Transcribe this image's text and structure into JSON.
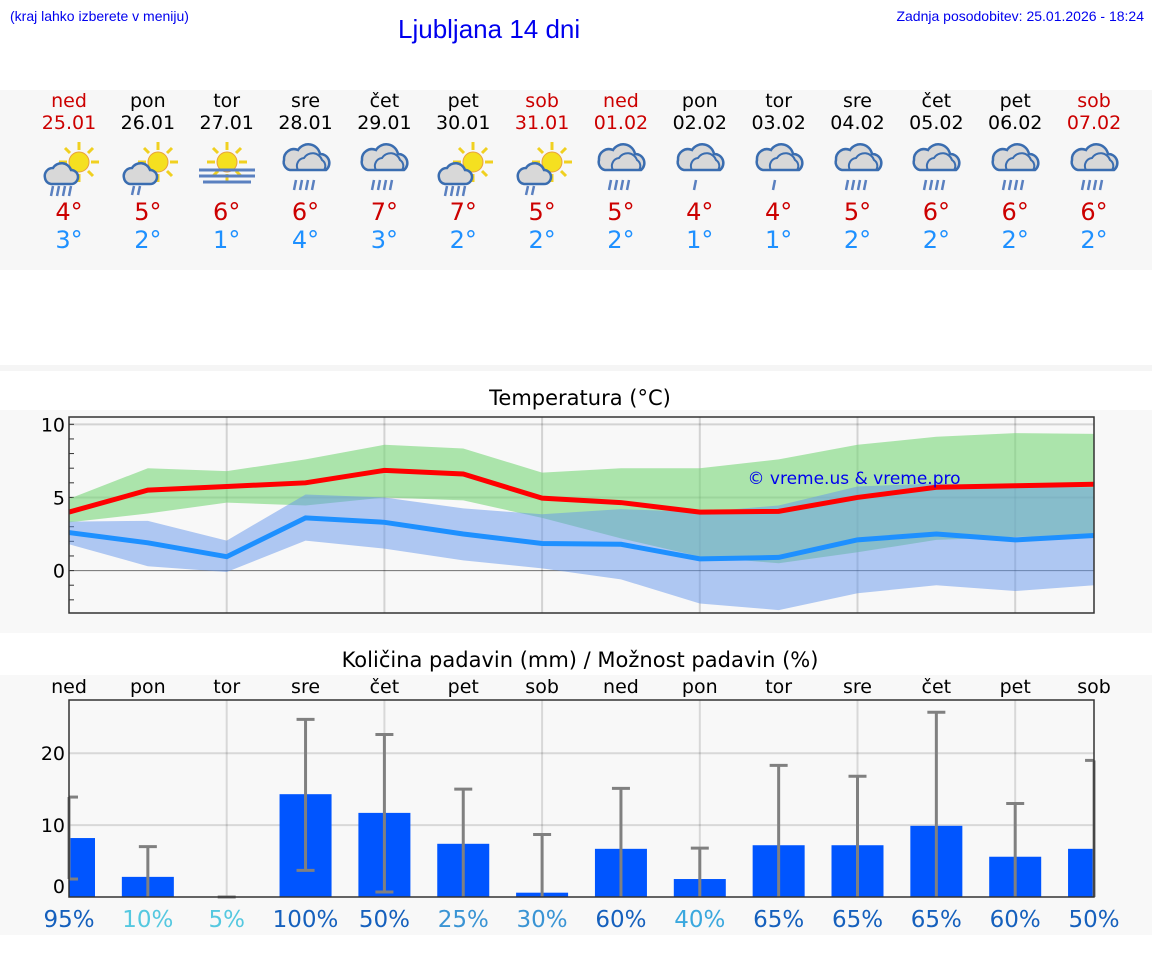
{
  "header": {
    "hint": "(kraj lahko izberete v meniju)",
    "title": "Ljubljana 14 dni",
    "updated": "Zadnja posodobitev: 25.01.2026 - 18:24"
  },
  "days": [
    {
      "name": "ned",
      "date": "25.01",
      "weekend": true,
      "icon": "sun-cloud-rain-icon",
      "max": "4°",
      "min": "3°"
    },
    {
      "name": "pon",
      "date": "26.01",
      "weekend": false,
      "icon": "sun-cloud-light-rain-icon",
      "max": "5°",
      "min": "2°"
    },
    {
      "name": "tor",
      "date": "27.01",
      "weekend": false,
      "icon": "sun-fog-icon",
      "max": "6°",
      "min": "1°"
    },
    {
      "name": "sre",
      "date": "28.01",
      "weekend": false,
      "icon": "cloud-rain-icon",
      "max": "6°",
      "min": "4°"
    },
    {
      "name": "čet",
      "date": "29.01",
      "weekend": false,
      "icon": "cloud-rain-icon",
      "max": "7°",
      "min": "3°"
    },
    {
      "name": "pet",
      "date": "30.01",
      "weekend": false,
      "icon": "sun-cloud-rain-icon",
      "max": "7°",
      "min": "2°"
    },
    {
      "name": "sob",
      "date": "31.01",
      "weekend": true,
      "icon": "sun-cloud-light-rain-icon",
      "max": "5°",
      "min": "2°"
    },
    {
      "name": "ned",
      "date": "01.02",
      "weekend": true,
      "icon": "cloud-rain-icon",
      "max": "5°",
      "min": "2°"
    },
    {
      "name": "pon",
      "date": "02.02",
      "weekend": false,
      "icon": "cloud-light-rain-icon",
      "max": "4°",
      "min": "1°"
    },
    {
      "name": "tor",
      "date": "03.02",
      "weekend": false,
      "icon": "cloud-light-rain-icon",
      "max": "4°",
      "min": "1°"
    },
    {
      "name": "sre",
      "date": "04.02",
      "weekend": false,
      "icon": "cloud-rain-icon",
      "max": "5°",
      "min": "2°"
    },
    {
      "name": "čet",
      "date": "05.02",
      "weekend": false,
      "icon": "cloud-rain-icon",
      "max": "6°",
      "min": "2°"
    },
    {
      "name": "pet",
      "date": "06.02",
      "weekend": false,
      "icon": "cloud-rain-icon",
      "max": "6°",
      "min": "2°"
    },
    {
      "name": "sob",
      "date": "07.02",
      "weekend": true,
      "icon": "cloud-rain-icon",
      "max": "6°",
      "min": "2°"
    }
  ],
  "colors": {
    "weekend": "#cc0000",
    "max": "#ff0000",
    "min": "#1e90ff",
    "max_band": "#aeeaae",
    "min_band": "#adc8f2",
    "overlap": "#7cc8a8",
    "bar": "#0055ff",
    "error": "#808080"
  },
  "chart_data": [
    {
      "type": "line",
      "title": "Temperatura (°C)",
      "watermark": "© vreme.us & vreme.pro",
      "ylim": [
        -2.9,
        10.5
      ],
      "yticks": [
        0,
        5,
        10
      ],
      "grid": true,
      "x": [
        "25.01",
        "26.01",
        "27.01",
        "28.01",
        "29.01",
        "30.01",
        "31.01",
        "01.02",
        "02.02",
        "03.02",
        "04.02",
        "05.02",
        "06.02",
        "07.02"
      ],
      "series": [
        {
          "role": "max",
          "color": "#ff0000",
          "values": [
            4.0,
            5.5,
            5.75,
            6.0,
            6.85,
            6.6,
            4.95,
            4.65,
            4.0,
            4.05,
            5.0,
            5.7,
            5.8,
            5.9
          ],
          "band_low": [
            3.3,
            3.9,
            4.65,
            4.45,
            5.0,
            4.8,
            3.6,
            2.2,
            0.95,
            0.5,
            1.25,
            2.1,
            2.3,
            2.4
          ],
          "band_high": [
            4.9,
            7.0,
            6.8,
            7.6,
            8.6,
            8.35,
            6.7,
            7.0,
            7.0,
            7.6,
            8.6,
            9.15,
            9.4,
            9.35
          ]
        },
        {
          "role": "min",
          "color": "#1e90ff",
          "values": [
            2.6,
            1.9,
            0.95,
            3.6,
            3.3,
            2.5,
            1.85,
            1.8,
            0.8,
            0.9,
            2.1,
            2.5,
            2.1,
            2.4
          ],
          "band_low": [
            1.8,
            0.3,
            -0.1,
            2.05,
            1.5,
            0.7,
            0.15,
            -0.6,
            -2.25,
            -2.7,
            -1.55,
            -1.0,
            -1.4,
            -1.0
          ],
          "band_high": [
            3.35,
            3.4,
            2.05,
            5.2,
            5.0,
            4.25,
            3.85,
            4.2,
            4.0,
            4.45,
            5.75,
            5.95,
            5.7,
            5.7
          ]
        }
      ]
    },
    {
      "type": "bar",
      "title": "Količina padavin (mm) / Možnost padavin (%)",
      "ylim": [
        0,
        27.4
      ],
      "yticks": [
        0,
        10,
        20
      ],
      "grid": true,
      "categories": [
        "ned",
        "pon",
        "tor",
        "sre",
        "čet",
        "pet",
        "sob",
        "ned",
        "pon",
        "tor",
        "sre",
        "čet",
        "pet",
        "sob"
      ],
      "values": [
        8.2,
        2.8,
        0,
        14.3,
        11.7,
        7.4,
        0.6,
        6.7,
        2.5,
        7.2,
        7.2,
        9.9,
        5.6,
        6.7
      ],
      "error_low": [
        2.5,
        0,
        0,
        3.7,
        0.7,
        0,
        0,
        0,
        0,
        0,
        0,
        0,
        0,
        0
      ],
      "error_high": [
        13.9,
        7.0,
        0,
        24.7,
        22.6,
        15.0,
        8.7,
        15.1,
        6.8,
        18.3,
        16.8,
        25.7,
        13.0,
        19.0
      ],
      "probability": [
        "95%",
        "10%",
        "5%",
        "100%",
        "50%",
        "25%",
        "30%",
        "60%",
        "40%",
        "65%",
        "65%",
        "65%",
        "60%",
        "50%"
      ],
      "probability_colors": [
        "#1560bd",
        "#55c8e0",
        "#55c8e0",
        "#1560bd",
        "#1560bd",
        "#3a94d4",
        "#3a94d4",
        "#1560bd",
        "#3aa8de",
        "#1560bd",
        "#1560bd",
        "#1560bd",
        "#1560bd",
        "#1560bd"
      ]
    }
  ]
}
